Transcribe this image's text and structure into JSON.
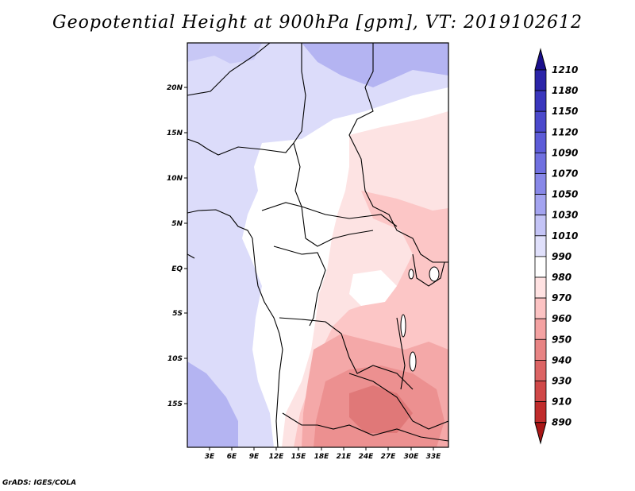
{
  "title": "Geopotential Height at 900hPa [gpm], VT: 2019102612",
  "credit": "GrADS: IGES/COLA",
  "map": {
    "lat_labels": [
      "20N",
      "15N",
      "10N",
      "5N",
      "EQ",
      "5S",
      "10S",
      "15S"
    ],
    "lon_labels": [
      "3E",
      "6E",
      "9E",
      "12E",
      "15E",
      "18E",
      "21E",
      "24E",
      "27E",
      "30E",
      "33E"
    ]
  },
  "colorbar": {
    "levels": [
      "1210",
      "1180",
      "1150",
      "1120",
      "1090",
      "1070",
      "1050",
      "1030",
      "1010",
      "990",
      "980",
      "970",
      "960",
      "950",
      "940",
      "930",
      "910",
      "890"
    ],
    "colors": [
      "#1a0f8c",
      "#2b24a8",
      "#3a36bd",
      "#4b49cc",
      "#5d5cd8",
      "#7070e0",
      "#8888e8",
      "#a4a4f0",
      "#c4c4f6",
      "#e0e0fb",
      "#ffffff",
      "#ffe2e2",
      "#fcc3c3",
      "#f4a2a2",
      "#e88484",
      "#dc6464",
      "#d04848",
      "#c02c2c",
      "#a81616"
    ]
  }
}
